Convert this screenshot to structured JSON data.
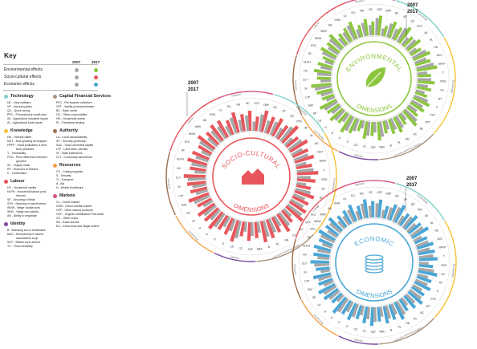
{
  "key": {
    "title": "Key",
    "year_a": "2007",
    "year_b": "2017",
    "effects": [
      {
        "label": "Environmental effects",
        "color_a": "#a7a7a7",
        "color_b": "#8cc63f"
      },
      {
        "label": "Socio-cultural effects",
        "color_a": "#a7a7a7",
        "color_b": "#e8565c"
      },
      {
        "label": "Economic effects",
        "color_a": "#a7a7a7",
        "color_b": "#4aa6d6"
      }
    ]
  },
  "categories": [
    {
      "name": "Technology",
      "color": "#7fd1c9",
      "items": [
        "NC - New cultivars",
        "VP - Vacuum packs",
        "QC - Quick curing",
        "PPC - Phone/phone credit plan",
        "AII - Agricultural industrial inputs",
        "AL - Agricultural local inputs"
      ]
    },
    {
      "name": "Knowledge",
      "color": "#f3c233",
      "items": [
        "HD - Harvest dates",
        "NGT - New growing techniques",
        "HPFP - Hand pollination & best",
        "farm practices",
        "T - Traceability",
        "PDG - Price difference between",
        "growers",
        "SC - Supply chain",
        "RT - Rumours of thieves",
        "C - Certification"
      ]
    },
    {
      "name": "Labour",
      "color": "#e8565c",
      "items": [
        "HV - Household vanilla",
        "HLPH - Household labour post-",
        "harvest",
        "SF - Securing in fields",
        "STH - Securing in town/homes",
        "WVW - Wage vanilla work",
        "WNV - Wage non-vanilla",
        "AN - Ability to negotiate"
      ]
    },
    {
      "name": "Identity",
      "color": "#7a4a9e",
      "items": [
        "B - Branding tool & certificates",
        "MAC - Membership in farmer",
        "association/ coop",
        "SCF - Skilled curer-farmer",
        "TC - Trust-credibility"
      ]
    },
    {
      "name": "Capital Financial Services",
      "color": "#a8937a",
      "items": [
        "PFC - Pre-finance collectors",
        "VPT - Vanilla production/trade",
        "BC - Bank credit",
        "OC - Other commodities",
        "HN - Household needs",
        "PL - Predatory lending"
      ]
    },
    {
      "name": "Authority",
      "color": "#9e6b4a",
      "items": [
        "LA - Local accountability",
        "SP - Security-protection",
        "SAC - Socio-ancestral capital",
        "LTP - Land titles, permits",
        "SI - State institutions",
        "CLT - Customary land tenure"
      ]
    },
    {
      "name": "Resources",
      "color": "#f2a34a",
      "items": [
        "CS - Coping supplies",
        "S - Security",
        "Tr - Transport",
        "A - Aid",
        "H - Health-healthcare"
      ]
    },
    {
      "name": "Markets",
      "color": "#d94f8a",
      "items": [
        "Cv - Cured market",
        "GVM - Green-vanilla market",
        "OFP - Other natural products",
        "OCF - Organic certification/ Fair-trade",
        "OC - Other crops",
        "RA - Road access",
        "ELI - Extra-local and illegal sellers"
      ]
    }
  ],
  "chart_data": [
    {
      "type": "radial-bar",
      "title": "Environmental Dimensions",
      "center_text": [
        "ENVIRONMENTAL",
        "DIMENSIONS"
      ],
      "year_labels": [
        "2007",
        "2017"
      ],
      "color_2007": "#a7a7a7",
      "color_2017": "#8cc63f",
      "ring_labels": [
        "Markets",
        "Technology",
        "Knowledge",
        "Capital Financial Services",
        "Identity",
        "Resources",
        "Authority",
        "Labour"
      ],
      "spoke_labels": [
        "GVM",
        "Cv",
        "ELI",
        "RA",
        "OC",
        "OCF",
        "ONP",
        "NC",
        "VP",
        "QC",
        "PPC",
        "AII",
        "AL",
        "HD",
        "NGT",
        "HPFP",
        "T",
        "PDG",
        "SC",
        "RT",
        "C",
        "PFC",
        "VPT",
        "BC",
        "OC",
        "HN",
        "PL",
        "B",
        "MAC",
        "SCF",
        "TC",
        "CS",
        "S",
        "Tr",
        "A",
        "H",
        "LA",
        "SP",
        "SAC",
        "LTP",
        "SI",
        "CLT",
        "HV",
        "HLPH",
        "SF",
        "STH",
        "WVW",
        "WNV",
        "AN"
      ],
      "series": [
        {
          "name": "2007",
          "values": [
            0.55,
            0.72,
            0.4,
            0.62,
            0.48,
            0.8,
            0.35,
            0.66,
            0.52,
            0.74,
            0.44,
            0.6,
            0.38,
            0.7,
            0.56,
            0.82,
            0.46,
            0.63,
            0.5,
            0.41,
            0.68,
            0.58,
            0.47,
            0.76,
            0.39,
            0.61,
            0.54,
            0.43,
            0.71,
            0.49,
            0.65,
            0.37,
            0.59,
            0.73,
            0.45,
            0.62,
            0.51,
            0.69,
            0.42,
            0.57,
            0.78,
            0.48,
            0.64,
            0.53,
            0.4,
            0.67,
            0.55,
            0.72,
            0.46
          ]
        },
        {
          "name": "2017",
          "values": [
            0.7,
            0.85,
            0.58,
            0.78,
            0.64,
            0.92,
            0.5,
            0.8,
            0.66,
            0.88,
            0.6,
            0.76,
            0.55,
            0.84,
            0.72,
            0.95,
            0.62,
            0.79,
            0.68,
            0.57,
            0.83,
            0.74,
            0.63,
            0.9,
            0.56,
            0.77,
            0.7,
            0.59,
            0.86,
            0.65,
            0.81,
            0.53,
            0.75,
            0.89,
            0.61,
            0.78,
            0.67,
            0.85,
            0.58,
            0.73,
            0.93,
            0.64,
            0.8,
            0.69,
            0.56,
            0.82,
            0.71,
            0.87,
            0.62
          ]
        }
      ]
    },
    {
      "type": "radial-bar",
      "title": "Socio-Cultural Dimensions",
      "center_text": [
        "SOCIO-CULTURAL",
        "DIMENSIONS"
      ],
      "year_labels": [
        "2007",
        "2017"
      ],
      "color_2007": "#a7a7a7",
      "color_2017": "#e8565c",
      "ring_labels": [
        "Markets",
        "Technology",
        "Knowledge",
        "Capital Financial Services",
        "Identity",
        "Resources",
        "Authority",
        "Labour"
      ],
      "spoke_labels": [
        "GVM",
        "Cv",
        "ELI",
        "RA",
        "OC",
        "OCF",
        "ONP",
        "NC",
        "VP",
        "QC",
        "PPC",
        "AII",
        "AL",
        "HD",
        "NGT",
        "HPFP",
        "T",
        "PDG",
        "SC",
        "RT",
        "C",
        "PFC",
        "VPT",
        "BC",
        "OC",
        "HN",
        "PL",
        "B",
        "MAC",
        "SCF",
        "TC",
        "CS",
        "S",
        "Tr",
        "A",
        "H",
        "LA",
        "SP",
        "SAC",
        "LTP",
        "SI",
        "CLT",
        "HV",
        "HLPH",
        "SF",
        "STH",
        "WVW",
        "WNV",
        "AN"
      ],
      "series": [
        {
          "name": "2007",
          "values": [
            0.6,
            0.45,
            0.7,
            0.52,
            0.66,
            0.4,
            0.74,
            0.55,
            0.62,
            0.48,
            0.78,
            0.43,
            0.69,
            0.51,
            0.64,
            0.46,
            0.72,
            0.58,
            0.41,
            0.67,
            0.53,
            0.61,
            0.75,
            0.44,
            0.68,
            0.5,
            0.63,
            0.71,
            0.47,
            0.59,
            0.42,
            0.76,
            0.54,
            0.49,
            0.7,
            0.57,
            0.65,
            0.45,
            0.73,
            0.52,
            0.6,
            0.77,
            0.48,
            0.66,
            0.56,
            0.43,
            0.69,
            0.51,
            0.62
          ]
        },
        {
          "name": "2017",
          "values": [
            0.82,
            0.66,
            0.9,
            0.74,
            0.86,
            0.62,
            0.94,
            0.76,
            0.84,
            0.7,
            0.96,
            0.64,
            0.88,
            0.72,
            0.85,
            0.68,
            0.91,
            0.79,
            0.63,
            0.87,
            0.75,
            0.83,
            0.93,
            0.65,
            0.89,
            0.71,
            0.84,
            0.92,
            0.69,
            0.8,
            0.64,
            0.95,
            0.76,
            0.7,
            0.9,
            0.78,
            0.86,
            0.67,
            0.92,
            0.73,
            0.81,
            0.94,
            0.7,
            0.87,
            0.77,
            0.65,
            0.89,
            0.72,
            0.83
          ]
        }
      ]
    },
    {
      "type": "radial-bar",
      "title": "Economic Dimensions",
      "center_text": [
        "ECONOMIC",
        "DIMENSIONS"
      ],
      "year_labels": [
        "2007",
        "2017"
      ],
      "color_2007": "#a7a7a7",
      "color_2017": "#4aa6d6",
      "ring_labels": [
        "Markets",
        "Technology",
        "Knowledge",
        "Capital Financial Services",
        "Identity",
        "Resources",
        "Authority",
        "Labour"
      ],
      "spoke_labels": [
        "GVM",
        "Cv",
        "ELI",
        "RA",
        "OC",
        "OCF",
        "ONP",
        "NC",
        "VP",
        "QC",
        "PPC",
        "AII",
        "AL",
        "HD",
        "NGT",
        "HPFP",
        "T",
        "PDG",
        "SC",
        "RT",
        "C",
        "PFC",
        "VPT",
        "BC",
        "OC",
        "HN",
        "PL",
        "B",
        "MAC",
        "SCF",
        "TC",
        "CS",
        "S",
        "Tr",
        "A",
        "H",
        "LA",
        "SP",
        "SAC",
        "LTP",
        "SI",
        "CLT",
        "HV",
        "HLPH",
        "SF",
        "STH",
        "WVW",
        "WNV",
        "AN"
      ],
      "series": [
        {
          "name": "2007",
          "values": [
            0.5,
            0.64,
            0.44,
            0.72,
            0.56,
            0.68,
            0.4,
            0.6,
            0.75,
            0.47,
            0.66,
            0.53,
            0.71,
            0.42,
            0.62,
            0.58,
            0.69,
            0.45,
            0.74,
            0.52,
            0.61,
            0.49,
            0.67,
            0.57,
            0.43,
            0.73,
            0.55,
            0.63,
            0.48,
            0.7,
            0.59,
            0.46,
            0.65,
            0.54,
            0.77,
            0.41,
            0.6,
            0.68,
            0.5,
            0.64,
            0.45,
            0.72,
            0.57,
            0.62,
            0.48,
            0.7,
            0.53,
            0.66,
            0.44
          ]
        },
        {
          "name": "2017",
          "values": [
            0.72,
            0.84,
            0.66,
            0.9,
            0.78,
            0.87,
            0.62,
            0.8,
            0.93,
            0.69,
            0.86,
            0.74,
            0.91,
            0.64,
            0.82,
            0.79,
            0.88,
            0.67,
            0.92,
            0.73,
            0.83,
            0.7,
            0.87,
            0.77,
            0.65,
            0.91,
            0.76,
            0.84,
            0.69,
            0.89,
            0.8,
            0.68,
            0.86,
            0.75,
            0.95,
            0.63,
            0.81,
            0.88,
            0.71,
            0.85,
            0.66,
            0.9,
            0.78,
            0.83,
            0.7,
            0.89,
            0.74,
            0.86,
            0.66
          ]
        }
      ]
    }
  ]
}
